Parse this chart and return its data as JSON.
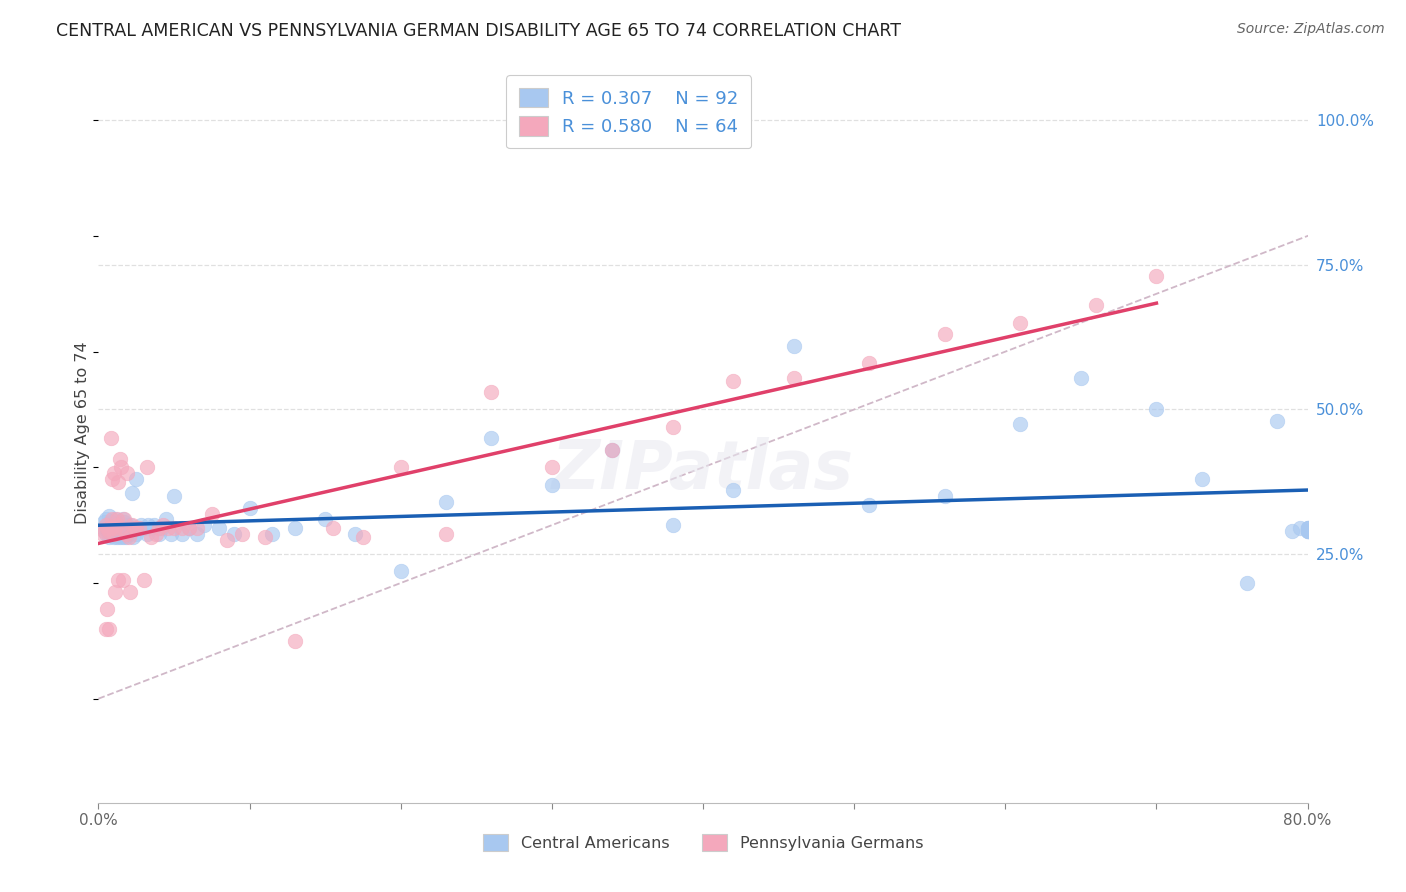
{
  "title": "CENTRAL AMERICAN VS PENNSYLVANIA GERMAN DISABILITY AGE 65 TO 74 CORRELATION CHART",
  "source": "Source: ZipAtlas.com",
  "ylabel": "Disability Age 65 to 74",
  "right_ytick_vals": [
    0.25,
    0.5,
    0.75,
    1.0
  ],
  "right_ytick_labels": [
    "25.0%",
    "50.0%",
    "75.0%",
    "100.0%"
  ],
  "xtick_vals": [
    0.0,
    0.1,
    0.2,
    0.3,
    0.4,
    0.5,
    0.6,
    0.7,
    0.8
  ],
  "xtick_labels": [
    "0.0%",
    "",
    "",
    "",
    "",
    "",
    "",
    "",
    "80.0%"
  ],
  "xmin": 0.0,
  "xmax": 0.8,
  "ymin": -0.18,
  "ymax": 1.1,
  "legend_r1": "R = 0.307",
  "legend_n1": "N = 92",
  "legend_r2": "R = 0.580",
  "legend_n2": "N = 64",
  "blue_color": "#a8c8f0",
  "pink_color": "#f4a8bc",
  "line_blue": "#1a5fb4",
  "line_pink": "#e0406a",
  "diagonal_color": "#d0b8c8",
  "background_color": "#ffffff",
  "grid_color": "#e0e0e0",
  "blue_scatter_x": [
    0.003,
    0.004,
    0.005,
    0.005,
    0.006,
    0.006,
    0.007,
    0.007,
    0.008,
    0.008,
    0.009,
    0.009,
    0.01,
    0.01,
    0.01,
    0.011,
    0.011,
    0.011,
    0.012,
    0.012,
    0.013,
    0.013,
    0.013,
    0.014,
    0.014,
    0.015,
    0.015,
    0.016,
    0.016,
    0.017,
    0.017,
    0.018,
    0.018,
    0.019,
    0.019,
    0.02,
    0.02,
    0.021,
    0.021,
    0.022,
    0.023,
    0.024,
    0.025,
    0.025,
    0.027,
    0.028,
    0.03,
    0.032,
    0.033,
    0.035,
    0.037,
    0.04,
    0.042,
    0.045,
    0.048,
    0.05,
    0.055,
    0.06,
    0.065,
    0.07,
    0.08,
    0.09,
    0.1,
    0.115,
    0.13,
    0.15,
    0.17,
    0.2,
    0.23,
    0.26,
    0.3,
    0.34,
    0.38,
    0.42,
    0.46,
    0.51,
    0.56,
    0.61,
    0.65,
    0.7,
    0.73,
    0.76,
    0.78,
    0.79,
    0.795,
    0.8,
    0.8,
    0.8,
    0.8,
    0.8,
    0.8,
    0.8
  ],
  "blue_scatter_y": [
    0.295,
    0.305,
    0.285,
    0.31,
    0.29,
    0.3,
    0.315,
    0.28,
    0.295,
    0.305,
    0.285,
    0.295,
    0.3,
    0.28,
    0.295,
    0.31,
    0.285,
    0.3,
    0.28,
    0.295,
    0.3,
    0.285,
    0.295,
    0.28,
    0.3,
    0.295,
    0.285,
    0.31,
    0.28,
    0.295,
    0.305,
    0.28,
    0.295,
    0.285,
    0.3,
    0.295,
    0.285,
    0.295,
    0.3,
    0.355,
    0.28,
    0.295,
    0.38,
    0.285,
    0.295,
    0.3,
    0.295,
    0.285,
    0.3,
    0.295,
    0.3,
    0.285,
    0.295,
    0.31,
    0.285,
    0.35,
    0.285,
    0.295,
    0.285,
    0.3,
    0.295,
    0.285,
    0.33,
    0.285,
    0.295,
    0.31,
    0.285,
    0.22,
    0.34,
    0.45,
    0.37,
    0.43,
    0.3,
    0.36,
    0.61,
    0.335,
    0.35,
    0.475,
    0.555,
    0.5,
    0.38,
    0.2,
    0.48,
    0.29,
    0.295,
    0.29,
    0.295,
    0.29,
    0.295,
    0.29,
    0.295,
    0.29
  ],
  "pink_scatter_x": [
    0.003,
    0.004,
    0.005,
    0.005,
    0.006,
    0.006,
    0.007,
    0.007,
    0.008,
    0.008,
    0.009,
    0.009,
    0.01,
    0.01,
    0.011,
    0.011,
    0.012,
    0.012,
    0.013,
    0.013,
    0.014,
    0.015,
    0.015,
    0.016,
    0.017,
    0.018,
    0.019,
    0.02,
    0.021,
    0.022,
    0.024,
    0.025,
    0.027,
    0.03,
    0.032,
    0.035,
    0.038,
    0.04,
    0.043,
    0.046,
    0.05,
    0.055,
    0.06,
    0.065,
    0.075,
    0.085,
    0.095,
    0.11,
    0.13,
    0.155,
    0.175,
    0.2,
    0.23,
    0.26,
    0.3,
    0.34,
    0.38,
    0.42,
    0.46,
    0.51,
    0.56,
    0.61,
    0.66,
    0.7
  ],
  "pink_scatter_y": [
    0.285,
    0.29,
    0.12,
    0.3,
    0.155,
    0.295,
    0.12,
    0.29,
    0.45,
    0.295,
    0.38,
    0.31,
    0.285,
    0.39,
    0.295,
    0.185,
    0.3,
    0.31,
    0.375,
    0.205,
    0.415,
    0.295,
    0.4,
    0.205,
    0.31,
    0.285,
    0.39,
    0.28,
    0.185,
    0.3,
    0.295,
    0.295,
    0.295,
    0.205,
    0.4,
    0.28,
    0.285,
    0.295,
    0.3,
    0.295,
    0.295,
    0.295,
    0.295,
    0.295,
    0.32,
    0.275,
    0.285,
    0.28,
    0.1,
    0.295,
    0.28,
    0.4,
    0.285,
    0.53,
    0.4,
    0.43,
    0.47,
    0.55,
    0.555,
    0.58,
    0.63,
    0.65,
    0.68,
    0.73
  ]
}
